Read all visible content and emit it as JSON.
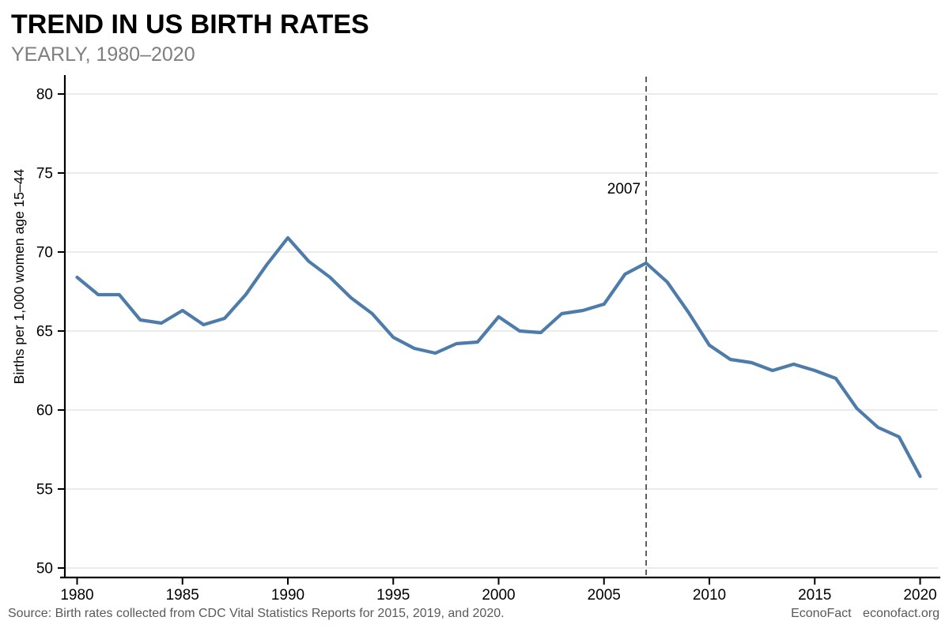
{
  "header": {
    "title": "TREND IN US BIRTH RATES",
    "subtitle": "YEARLY, 1980–2020"
  },
  "chart_data": {
    "type": "line",
    "title": "TREND IN US BIRTH RATES",
    "subtitle": "YEARLY, 1980–2020",
    "xlabel": "",
    "ylabel": "Births per 1,000 women age 15–44",
    "x": [
      1980,
      1981,
      1982,
      1983,
      1984,
      1985,
      1986,
      1987,
      1988,
      1989,
      1990,
      1991,
      1992,
      1993,
      1994,
      1995,
      1996,
      1997,
      1998,
      1999,
      2000,
      2001,
      2002,
      2003,
      2004,
      2005,
      2006,
      2007,
      2008,
      2009,
      2010,
      2011,
      2012,
      2013,
      2014,
      2015,
      2016,
      2017,
      2018,
      2019,
      2020
    ],
    "values": [
      68.4,
      67.3,
      67.3,
      65.7,
      65.5,
      66.3,
      65.4,
      65.8,
      67.3,
      69.2,
      70.9,
      69.4,
      68.4,
      67.1,
      66.1,
      64.6,
      63.9,
      63.6,
      64.2,
      64.3,
      65.9,
      65.0,
      64.9,
      66.1,
      66.3,
      66.7,
      68.6,
      69.3,
      68.1,
      66.2,
      64.1,
      63.2,
      63.0,
      62.5,
      62.9,
      62.5,
      62.0,
      60.1,
      58.9,
      58.3,
      55.8
    ],
    "ylim": [
      50,
      80
    ],
    "xlim": [
      1980,
      2020
    ],
    "yticks": [
      50,
      55,
      60,
      65,
      70,
      75,
      80
    ],
    "xticks": [
      1980,
      1985,
      1990,
      1995,
      2000,
      2005,
      2010,
      2015,
      2020
    ],
    "grid": "horizontal-only",
    "legend_position": "none",
    "line_color": "#4e7caa",
    "grid_color": "#ebebeb",
    "axis_color": "#000000",
    "annotation": {
      "label": "2007",
      "x": 2007,
      "style": "dashed-vertical-line",
      "line_color": "#4d4d4d"
    }
  },
  "footer": {
    "source": "Source: Birth rates collected from CDC Vital Statistics Reports for 2015, 2019, and 2020.",
    "brand": "EconoFact",
    "brand_site": "econofact.org"
  }
}
